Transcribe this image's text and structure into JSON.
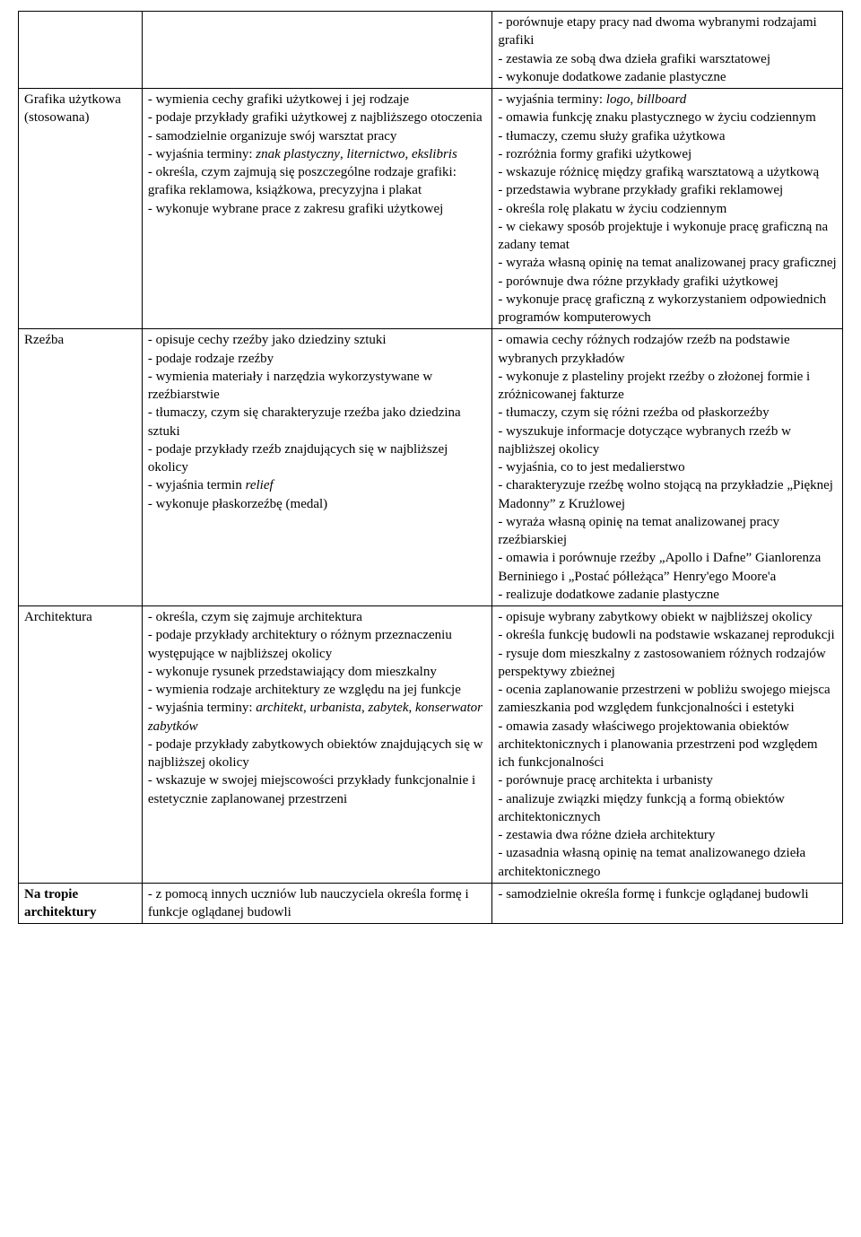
{
  "rows": [
    {
      "col1": "",
      "col2": "",
      "col3": "- porównuje etapy pracy nad dwoma wybranymi rodzajami grafiki\n- zestawia ze sobą dwa dzieła grafiki warsztatowej\n- wykonuje dodatkowe zadanie plastyczne"
    },
    {
      "col1": "Grafika użytkowa (stosowana)",
      "col2": "- wymienia cechy grafiki użytkowej i jej rodzaje\n- podaje przykłady grafiki użytkowej z najbliższego otoczenia\n- samodzielnie organizuje swój warsztat pracy\n- wyjaśnia terminy: <i>znak plastyczny</i>, <i>liternictwo</i>, <i>ekslibris</i>\n- określa, czym zajmują się poszczególne rodzaje grafiki: grafika reklamowa, książkowa, precyzyjna i plakat\n- wykonuje wybrane prace z zakresu grafiki użytkowej",
      "col3": "- wyjaśnia terminy: <i>logo</i>, <i>billboard</i>\n- omawia funkcję znaku plastycznego w życiu codziennym\n- tłumaczy, czemu służy grafika użytkowa\n- rozróżnia formy grafiki użytkowej\n- wskazuje różnicę między grafiką warsztatową a użytkową\n- przedstawia wybrane przykłady grafiki reklamowej\n- określa rolę plakatu w życiu codziennym\n- w ciekawy sposób projektuje i wykonuje pracę graficzną na zadany temat\n- wyraża własną opinię na temat analizowanej pracy graficznej\n- porównuje dwa różne przykłady grafiki użytkowej\n- wykonuje pracę graficzną z wykorzystaniem odpowiednich programów komputerowych"
    },
    {
      "col1": "Rzeźba",
      "col2": "- opisuje cechy rzeźby jako dziedziny sztuki\n- podaje rodzaje rzeźby\n- wymienia materiały i narzędzia wykorzystywane w rzeźbiarstwie\n- tłumaczy, czym się charakteryzuje rzeźba jako dziedzina sztuki\n- podaje przykłady rzeźb znajdujących się w najbliższej okolicy\n- wyjaśnia termin <i>relief</i>\n- wykonuje płaskorzeźbę (medal)",
      "col3": "- omawia cechy różnych rodzajów rzeźb na podstawie wybranych przykładów\n- wykonuje z plasteliny projekt rzeźby o złożonej formie i zróżnicowanej fakturze\n- tłumaczy, czym się różni rzeźba od płaskorzeźby\n- wyszukuje informacje dotyczące wybranych rzeźb w najbliższej okolicy\n- wyjaśnia, co to jest medalierstwo\n- charakteryzuje rzeźbę wolno stojącą na przykładzie „Pięknej Madonny” z Krużlowej\n- wyraża własną opinię na temat analizowanej pracy rzeźbiarskiej\n- omawia i porównuje rzeźby „Apollo i Dafne” Gianlorenza Berniniego i „Postać półleżąca” Henry'ego Moore'a\n- realizuje dodatkowe zadanie plastyczne"
    },
    {
      "col1": "Architektura",
      "col2": "- określa, czym się zajmuje architektura\n- podaje przykłady architektury o różnym przeznaczeniu występujące w najbliższej okolicy\n- wykonuje rysunek przedstawiający dom mieszkalny\n- wymienia rodzaje architektury ze względu na jej funkcje\n- wyjaśnia terminy: <i>architekt</i>, <i>urbanista</i>, <i>zabytek</i>, <i>konserwator zabytków</i>\n- podaje przykłady zabytkowych obiektów znajdujących się w najbliższej okolicy\n- wskazuje w swojej miejscowości przykłady funkcjonalnie i estetycznie zaplanowanej przestrzeni",
      "col3": "- opisuje wybrany zabytkowy obiekt w najbliższej okolicy\n- określa funkcję budowli na podstawie wskazanej reprodukcji\n- rysuje dom mieszkalny z zastosowaniem różnych rodzajów perspektywy zbieżnej\n- ocenia zaplanowanie przestrzeni w pobliżu swojego miejsca zamieszkania pod względem funkcjonalności i estetyki\n- omawia zasady właściwego projektowania obiektów architektonicznych i planowania przestrzeni pod względem ich funkcjonalności\n- porównuje pracę architekta i urbanisty\n- analizuje związki między funkcją a formą obiektów architektonicznych\n- zestawia dwa różne dzieła architektury\n- uzasadnia własną opinię na temat analizowanego dzieła architektonicznego"
    },
    {
      "col1": "<b>Na tropie architektury</b>",
      "col2": "- z pomocą innych uczniów lub nauczyciela określa formę i funkcje oglądanej budowli",
      "col3": "- samodzielnie określa formę i funkcje oglądanej budowli"
    }
  ]
}
